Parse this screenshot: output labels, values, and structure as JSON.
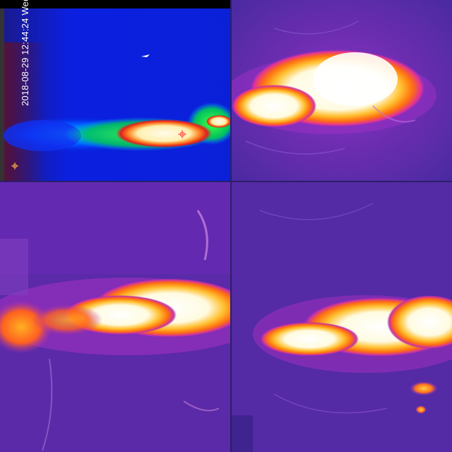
{
  "panels": [
    {
      "id": "panel-1",
      "palette": "rainbow",
      "timestamp": "2018-08-29 12:44:24 Wed"
    },
    {
      "id": "panel-2",
      "palette": "ironbow"
    },
    {
      "id": "panel-3",
      "palette": "ironbow"
    },
    {
      "id": "panel-4",
      "palette": "ironbow"
    }
  ],
  "colors": {
    "rainbow_bg": "#0a1fd6",
    "rainbow_hot": "#fff3c8",
    "ironbow_bg": "#5a2aa8",
    "ironbow_hot": "#ffffff",
    "ironbow_mid": "#ff9a1a",
    "ironbow_edge": "#e0309a"
  }
}
